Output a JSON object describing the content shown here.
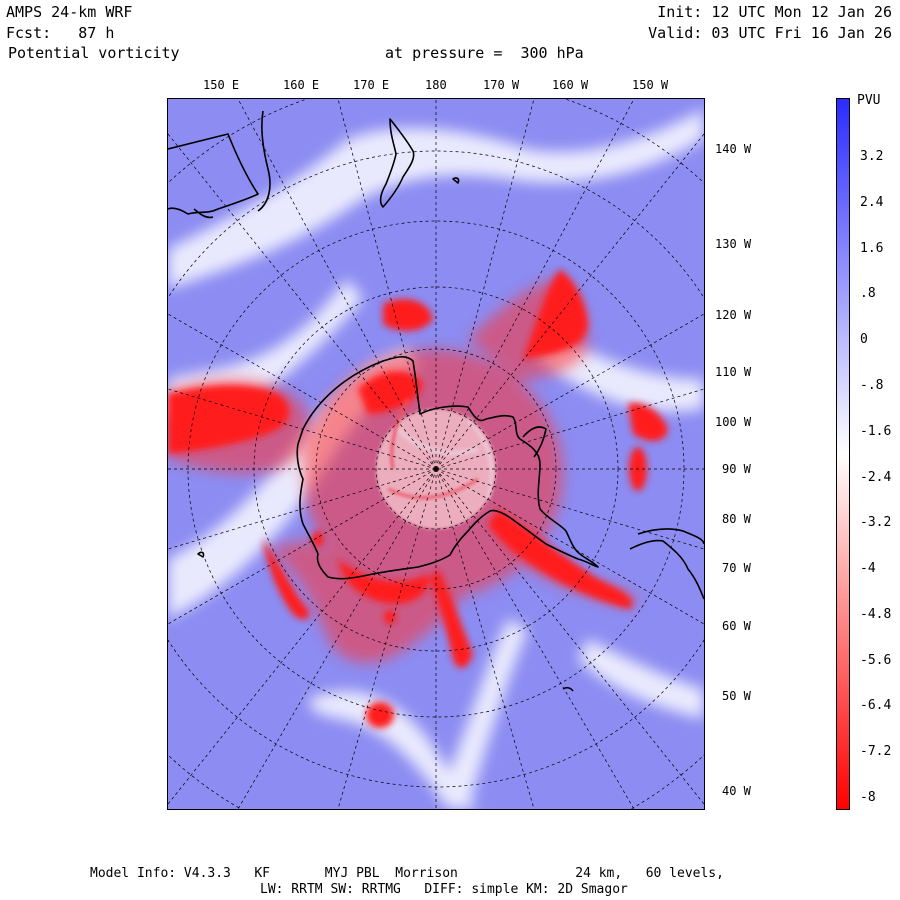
{
  "header": {
    "model": "AMPS 24-km WRF",
    "fcst": "Fcst:   87 h",
    "field": "Potential vorticity",
    "level": "at pressure =  300 hPa",
    "init": "Init: 12 UTC Mon 12 Jan 26",
    "valid": "Valid: 03 UTC Fri 16 Jan 26"
  },
  "top_longitudes": [
    "150 E",
    "160 E",
    "170 E",
    "180",
    "170 W",
    "160 W",
    "150 W"
  ],
  "right_longitudes": [
    "140 W",
    "130 W",
    "120 W",
    "110 W",
    "100 W",
    "90 W",
    "80 W",
    "70 W",
    "60 W",
    "50 W",
    "40 W"
  ],
  "colorbar": {
    "unit": "PVU",
    "labels": [
      "3.2",
      "2.4",
      "1.6",
      ".8",
      "0",
      "-.8",
      "-1.6",
      "-2.4",
      "-3.2",
      "-4",
      "-4.8",
      "-5.6",
      "-6.4",
      "-7.2",
      "-8"
    ],
    "min": -8,
    "max": 4,
    "high_color": "#2b2bff",
    "mid_color": "#ffffff",
    "low_color": "#ff0000"
  },
  "footer": {
    "line1": "Model Info: V4.3.3   KF       MYJ PBL  Morrison               24 km,   60 levels,",
    "line2": "LW: RRTM SW: RRTMG   DIFF: simple KM: 2D Smagor"
  },
  "colors": {
    "background_blue": "#8a8af0",
    "pv_red": "#ff2020"
  }
}
